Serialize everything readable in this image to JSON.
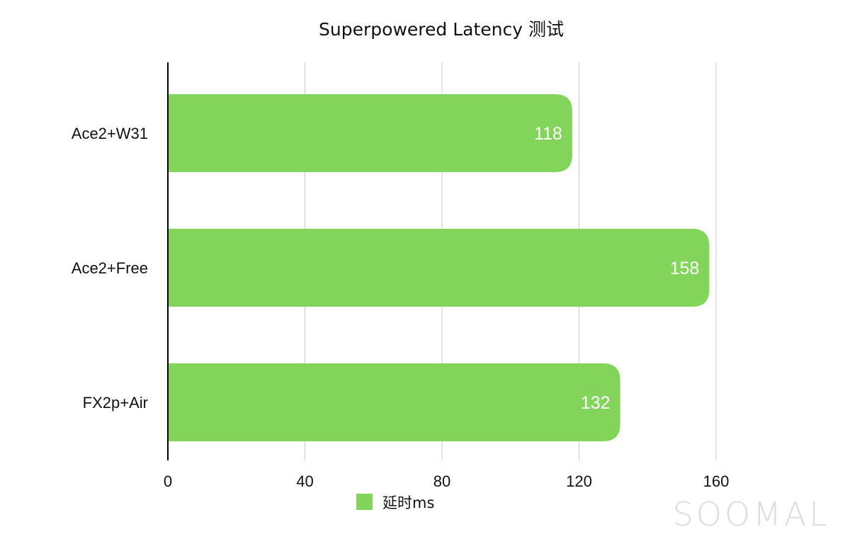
{
  "chart_data": {
    "type": "bar",
    "orientation": "horizontal",
    "title": "Superpowered Latency 测试",
    "categories": [
      "Ace2+W31",
      "Ace2+Free",
      "FX2p+Air"
    ],
    "series": [
      {
        "name": "延时ms",
        "values": [
          118,
          158,
          132
        ],
        "color": "#82d45a"
      }
    ],
    "xlim": [
      0,
      160
    ],
    "xticks": [
      0,
      40,
      80,
      120,
      160
    ],
    "data_labels": true,
    "grid": true,
    "legend_position": "bottom"
  },
  "watermark": "SOOMAL"
}
